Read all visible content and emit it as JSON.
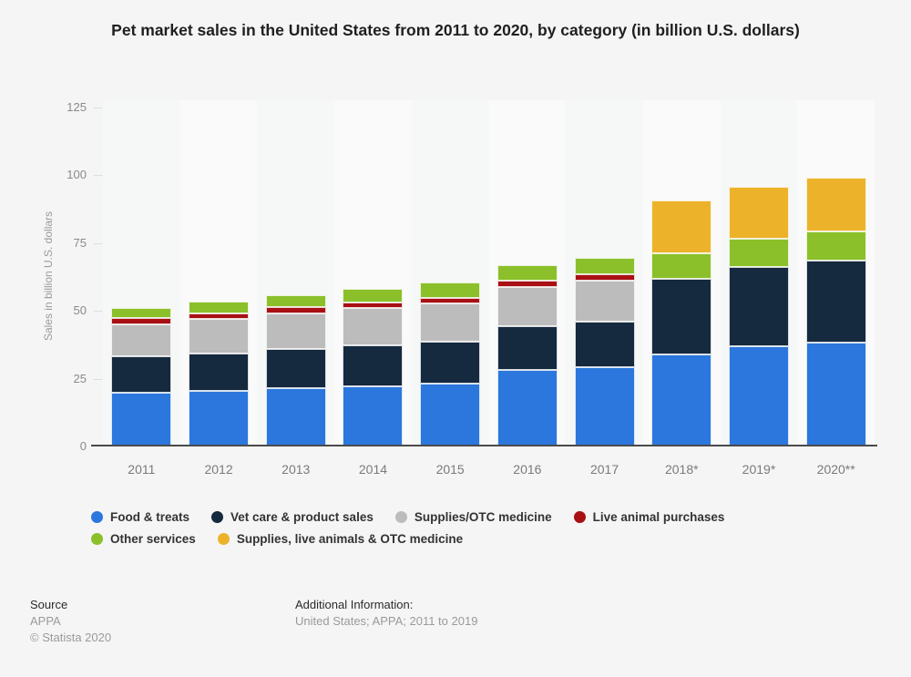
{
  "title": "Pet market sales in the United States from 2011 to 2020, by category (in billion U.S. dollars)",
  "chart_data": {
    "type": "bar",
    "stacked": true,
    "title": "Pet market sales in the United States from 2011 to 2020, by category (in billion U.S. dollars)",
    "xlabel": "",
    "ylabel": "Sales in billion U.S. dollars",
    "ylim": [
      0,
      125
    ],
    "yticks": [
      0,
      25,
      50,
      75,
      100,
      125
    ],
    "grid": "horizontal-dotted",
    "legend_position": "bottom",
    "categories": [
      "2011",
      "2012",
      "2013",
      "2014",
      "2015",
      "2016",
      "2017",
      "2018*",
      "2019*",
      "2020**"
    ],
    "series": [
      {
        "name": "Food & treats",
        "color": "#2b77dd",
        "values": [
          19.85,
          20.64,
          21.57,
          22.26,
          23.05,
          28.23,
          29.07,
          33.8,
          36.9,
          38.4
        ]
      },
      {
        "name": "Vet care & product sales",
        "color": "#15293f",
        "values": [
          13.41,
          13.67,
          14.37,
          15.04,
          15.42,
          15.95,
          17.07,
          27.8,
          29.3,
          30.2
        ]
      },
      {
        "name": "Supplies/OTC medicine",
        "color": "#bcbcbc",
        "values": [
          11.77,
          12.65,
          13.14,
          13.75,
          14.28,
          14.71,
          15.11,
          0,
          0,
          0
        ]
      },
      {
        "name": "Live animal purchases",
        "color": "#a81014",
        "values": [
          2.14,
          2.21,
          2.23,
          2.12,
          2.12,
          2.1,
          2.1,
          0,
          0,
          0
        ]
      },
      {
        "name": "Other services",
        "color": "#8bc02a",
        "values": [
          3.79,
          4.16,
          4.41,
          4.84,
          5.41,
          5.76,
          6.16,
          9.7,
          10.3,
          10.7
        ]
      },
      {
        "name": "Supplies, live animals & OTC medicine",
        "color": "#ecb32a",
        "values": [
          0,
          0,
          0,
          0,
          0,
          0,
          0,
          19.2,
          19.2,
          19.8
        ]
      }
    ],
    "column_band_colors": [
      "#f6f7f7",
      "#fafafa"
    ]
  },
  "footer": {
    "source_label": "Source",
    "source_value": "APPA",
    "copyright": "© Statista 2020",
    "additional_label": "Additional Information:",
    "additional_value": "United States; APPA; 2011 to 2019"
  }
}
